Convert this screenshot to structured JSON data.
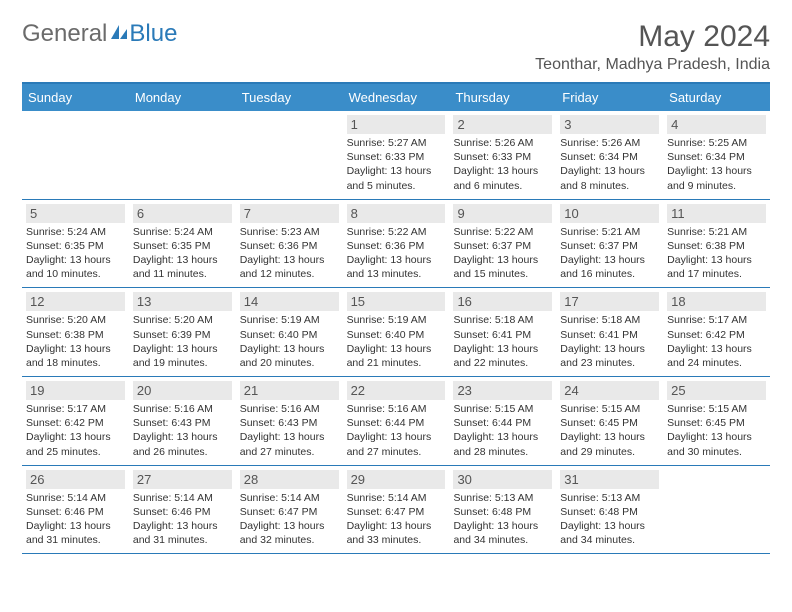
{
  "brand": {
    "text1": "General",
    "text2": "Blue"
  },
  "title": "May 2024",
  "location": "Teonthar, Madhya Pradesh, India",
  "colors": {
    "header_bg": "#3a8dc9",
    "border": "#2a7ab8",
    "daynum_bg": "#e9e9e9",
    "text_gray": "#555555",
    "body_text": "#333333"
  },
  "typography": {
    "title_fontsize": 30,
    "location_fontsize": 16,
    "dayhead_fontsize": 13,
    "cell_fontsize": 10.5
  },
  "day_labels": [
    "Sunday",
    "Monday",
    "Tuesday",
    "Wednesday",
    "Thursday",
    "Friday",
    "Saturday"
  ],
  "weeks": [
    [
      null,
      null,
      null,
      {
        "d": "1",
        "sr": "5:27 AM",
        "ss": "6:33 PM",
        "dl": "13 hours and 5 minutes."
      },
      {
        "d": "2",
        "sr": "5:26 AM",
        "ss": "6:33 PM",
        "dl": "13 hours and 6 minutes."
      },
      {
        "d": "3",
        "sr": "5:26 AM",
        "ss": "6:34 PM",
        "dl": "13 hours and 8 minutes."
      },
      {
        "d": "4",
        "sr": "5:25 AM",
        "ss": "6:34 PM",
        "dl": "13 hours and 9 minutes."
      }
    ],
    [
      {
        "d": "5",
        "sr": "5:24 AM",
        "ss": "6:35 PM",
        "dl": "13 hours and 10 minutes."
      },
      {
        "d": "6",
        "sr": "5:24 AM",
        "ss": "6:35 PM",
        "dl": "13 hours and 11 minutes."
      },
      {
        "d": "7",
        "sr": "5:23 AM",
        "ss": "6:36 PM",
        "dl": "13 hours and 12 minutes."
      },
      {
        "d": "8",
        "sr": "5:22 AM",
        "ss": "6:36 PM",
        "dl": "13 hours and 13 minutes."
      },
      {
        "d": "9",
        "sr": "5:22 AM",
        "ss": "6:37 PM",
        "dl": "13 hours and 15 minutes."
      },
      {
        "d": "10",
        "sr": "5:21 AM",
        "ss": "6:37 PM",
        "dl": "13 hours and 16 minutes."
      },
      {
        "d": "11",
        "sr": "5:21 AM",
        "ss": "6:38 PM",
        "dl": "13 hours and 17 minutes."
      }
    ],
    [
      {
        "d": "12",
        "sr": "5:20 AM",
        "ss": "6:38 PM",
        "dl": "13 hours and 18 minutes."
      },
      {
        "d": "13",
        "sr": "5:20 AM",
        "ss": "6:39 PM",
        "dl": "13 hours and 19 minutes."
      },
      {
        "d": "14",
        "sr": "5:19 AM",
        "ss": "6:40 PM",
        "dl": "13 hours and 20 minutes."
      },
      {
        "d": "15",
        "sr": "5:19 AM",
        "ss": "6:40 PM",
        "dl": "13 hours and 21 minutes."
      },
      {
        "d": "16",
        "sr": "5:18 AM",
        "ss": "6:41 PM",
        "dl": "13 hours and 22 minutes."
      },
      {
        "d": "17",
        "sr": "5:18 AM",
        "ss": "6:41 PM",
        "dl": "13 hours and 23 minutes."
      },
      {
        "d": "18",
        "sr": "5:17 AM",
        "ss": "6:42 PM",
        "dl": "13 hours and 24 minutes."
      }
    ],
    [
      {
        "d": "19",
        "sr": "5:17 AM",
        "ss": "6:42 PM",
        "dl": "13 hours and 25 minutes."
      },
      {
        "d": "20",
        "sr": "5:16 AM",
        "ss": "6:43 PM",
        "dl": "13 hours and 26 minutes."
      },
      {
        "d": "21",
        "sr": "5:16 AM",
        "ss": "6:43 PM",
        "dl": "13 hours and 27 minutes."
      },
      {
        "d": "22",
        "sr": "5:16 AM",
        "ss": "6:44 PM",
        "dl": "13 hours and 27 minutes."
      },
      {
        "d": "23",
        "sr": "5:15 AM",
        "ss": "6:44 PM",
        "dl": "13 hours and 28 minutes."
      },
      {
        "d": "24",
        "sr": "5:15 AM",
        "ss": "6:45 PM",
        "dl": "13 hours and 29 minutes."
      },
      {
        "d": "25",
        "sr": "5:15 AM",
        "ss": "6:45 PM",
        "dl": "13 hours and 30 minutes."
      }
    ],
    [
      {
        "d": "26",
        "sr": "5:14 AM",
        "ss": "6:46 PM",
        "dl": "13 hours and 31 minutes."
      },
      {
        "d": "27",
        "sr": "5:14 AM",
        "ss": "6:46 PM",
        "dl": "13 hours and 31 minutes."
      },
      {
        "d": "28",
        "sr": "5:14 AM",
        "ss": "6:47 PM",
        "dl": "13 hours and 32 minutes."
      },
      {
        "d": "29",
        "sr": "5:14 AM",
        "ss": "6:47 PM",
        "dl": "13 hours and 33 minutes."
      },
      {
        "d": "30",
        "sr": "5:13 AM",
        "ss": "6:48 PM",
        "dl": "13 hours and 34 minutes."
      },
      {
        "d": "31",
        "sr": "5:13 AM",
        "ss": "6:48 PM",
        "dl": "13 hours and 34 minutes."
      },
      null
    ]
  ],
  "labels": {
    "sunrise": "Sunrise:",
    "sunset": "Sunset:",
    "daylight": "Daylight:"
  }
}
